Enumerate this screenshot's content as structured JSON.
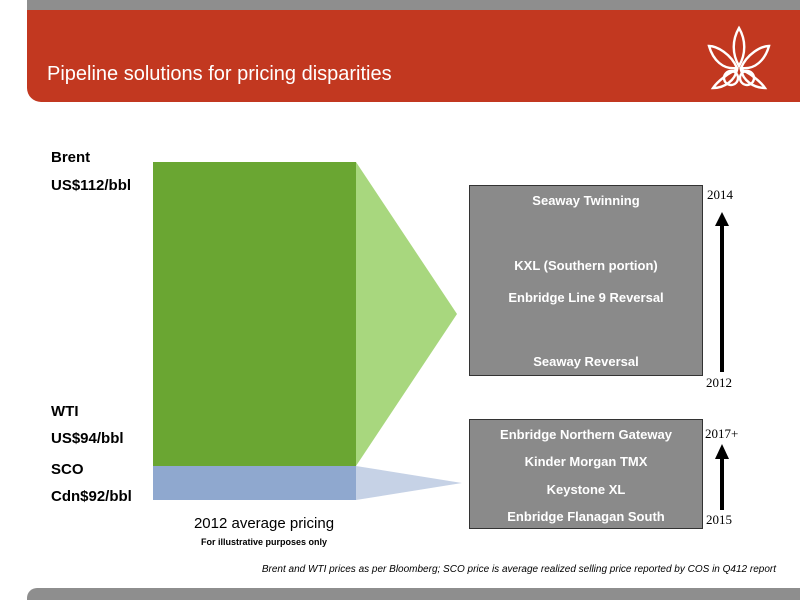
{
  "header": {
    "title": "Pipeline solutions for pricing disparities"
  },
  "prices": {
    "brent_name": "Brent",
    "brent_value": "US$112/bbl",
    "wti_name": "WTI",
    "wti_value": "US$94/bbl",
    "sco_name": "SCO",
    "sco_value": "Cdn$92/bbl"
  },
  "upper_group": {
    "items": [
      "Seaway Twinning",
      "KXL (Southern portion)",
      "Enbridge Line 9 Reversal",
      "Seaway Reversal"
    ],
    "year_top": "2014",
    "year_bottom": "2012"
  },
  "lower_group": {
    "items": [
      "Enbridge Northern Gateway",
      "Kinder Morgan TMX",
      "Keystone XL",
      "Enbridge Flanagan South"
    ],
    "year_top": "2017+",
    "year_bottom": "2015"
  },
  "caption": {
    "main": "2012 average pricing",
    "sub": "For illustrative purposes only"
  },
  "source_note": "Brent and WTI prices as per Bloomberg; SCO price is average realized selling price reported by COS in Q412 report",
  "colors": {
    "header_red": "#c23820",
    "bar_green": "#6aa632",
    "wedge_green": "#a8d77e",
    "bar_blue": "#8fa8cf",
    "wedge_blue": "#c6d2e6",
    "box_gray": "#8a8a8a"
  }
}
